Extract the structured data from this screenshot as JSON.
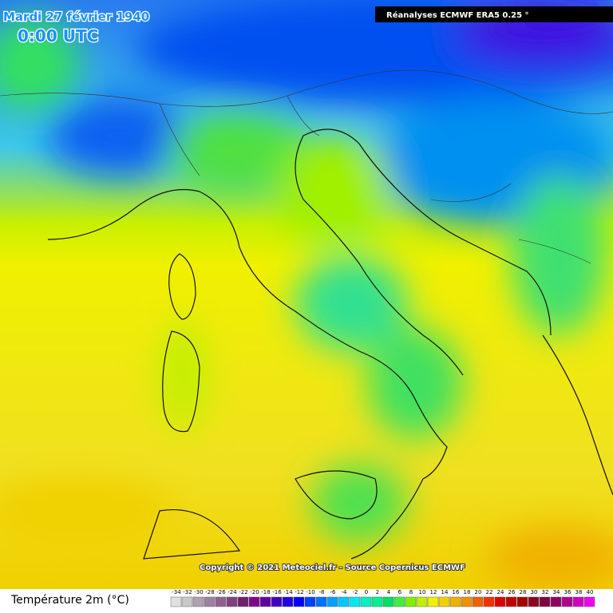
{
  "header": {
    "date": "Mardi 27 février 1940",
    "time": "0:00 UTC",
    "source": "Réanalyses ECMWF ERA5 0.25 °"
  },
  "copyright": "Copyright © 2021 Meteociel.fr - Source Copernicus ECMWF",
  "legend": {
    "title": "Température 2m (°C)",
    "stops": [
      {
        "value": -34,
        "color": "#e0e0e0"
      },
      {
        "value": -32,
        "color": "#c8c8c8"
      },
      {
        "value": -30,
        "color": "#b0a0b0"
      },
      {
        "value": -28,
        "color": "#a080a0"
      },
      {
        "value": -26,
        "color": "#906090"
      },
      {
        "value": -24,
        "color": "#804080"
      },
      {
        "value": -22,
        "color": "#702070"
      },
      {
        "value": -20,
        "color": "#800090"
      },
      {
        "value": -18,
        "color": "#6000a0"
      },
      {
        "value": -16,
        "color": "#4000c0"
      },
      {
        "value": -14,
        "color": "#2000e0"
      },
      {
        "value": -12,
        "color": "#0000ff"
      },
      {
        "value": -10,
        "color": "#0040ff"
      },
      {
        "value": -8,
        "color": "#0070ff"
      },
      {
        "value": -6,
        "color": "#00a0ff"
      },
      {
        "value": -4,
        "color": "#00c8ff"
      },
      {
        "value": -2,
        "color": "#00e8f0"
      },
      {
        "value": 0,
        "color": "#00f0c0"
      },
      {
        "value": 2,
        "color": "#00f090"
      },
      {
        "value": 4,
        "color": "#00e060"
      },
      {
        "value": 6,
        "color": "#40f040"
      },
      {
        "value": 8,
        "color": "#80f000"
      },
      {
        "value": 10,
        "color": "#c0f000"
      },
      {
        "value": 12,
        "color": "#f0f000"
      },
      {
        "value": 14,
        "color": "#f0d000"
      },
      {
        "value": 16,
        "color": "#f0b000"
      },
      {
        "value": 18,
        "color": "#f09000"
      },
      {
        "value": 20,
        "color": "#f06000"
      },
      {
        "value": 22,
        "color": "#f03000"
      },
      {
        "value": 24,
        "color": "#e00000"
      },
      {
        "value": 26,
        "color": "#c00000"
      },
      {
        "value": 28,
        "color": "#a00000"
      },
      {
        "value": 30,
        "color": "#900020"
      },
      {
        "value": 32,
        "color": "#800040"
      },
      {
        "value": 34,
        "color": "#900060"
      },
      {
        "value": 36,
        "color": "#b00090"
      },
      {
        "value": 38,
        "color": "#d000c0"
      },
      {
        "value": 40,
        "color": "#f000f0"
      }
    ]
  }
}
